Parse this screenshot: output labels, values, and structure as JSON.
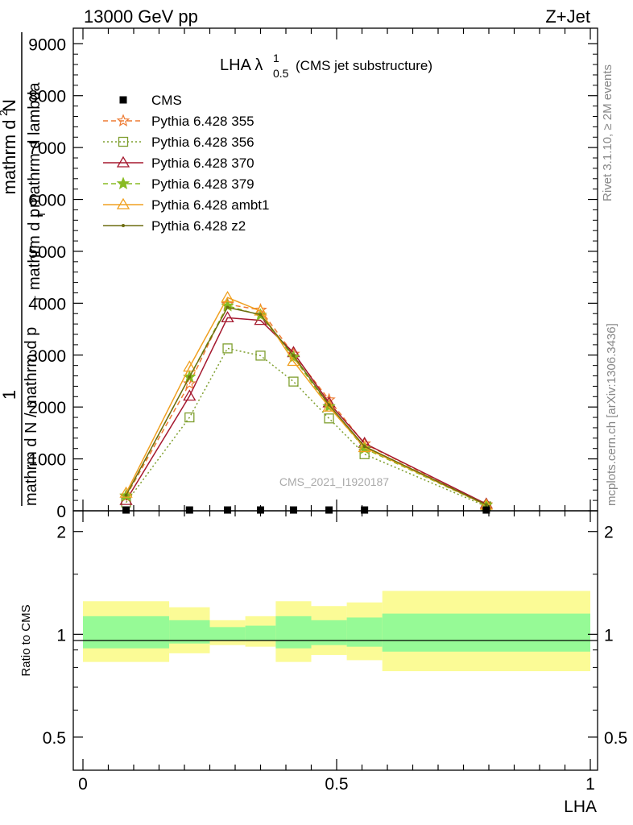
{
  "header": {
    "left": "13000 GeV pp",
    "right": "Z+Jet"
  },
  "plot_title": {
    "main": "LHA λ",
    "sup": "1",
    "sub": "0.5",
    "suffix": "(CMS jet substructure)"
  },
  "side_labels": {
    "rivet": "Rivet 3.1.10, ≥ 2M events",
    "mcplots": "mcplots.cern.ch [arXiv:1306.3436]"
  },
  "watermark": "CMS_2021_I1920187",
  "ylabel_main": {
    "numerator_one": "1",
    "numerator_two": "mathrm d",
    "numerator_two_sup": "2",
    "numerator_two_rest": "N",
    "den_a": "mathrm d N / mathrm d p",
    "den_a_sub": "T",
    "den_b": "mathrm d p",
    "den_b_sub": "T",
    "den_b_rest": "mathrm d lambda"
  },
  "ylabel_ratio": "Ratio to CMS",
  "xlabel": "LHA",
  "chart_data": [
    {
      "type": "line",
      "panel": "main",
      "xlim": [
        0,
        1
      ],
      "ylim": [
        0,
        9300
      ],
      "y_ticks": [
        0,
        1000,
        2000,
        3000,
        4000,
        5000,
        6000,
        7000,
        8000,
        9000
      ],
      "y_tick_labels": [
        "0",
        "1000",
        "2000",
        "3000",
        "4000",
        "5000",
        "6000",
        "7000",
        "8000",
        "9000"
      ],
      "x": [
        0.085,
        0.21,
        0.285,
        0.35,
        0.415,
        0.485,
        0.555,
        0.795
      ],
      "series": [
        {
          "name": "CMS",
          "color": "#000000",
          "marker": "square-filled",
          "line": "none",
          "values": [
            15,
            15,
            15,
            15,
            15,
            15,
            15,
            15
          ]
        },
        {
          "name": "Pythia 6.428 355",
          "color": "#ee7b33",
          "marker": "star-open",
          "line": "dashed",
          "values": [
            280,
            2450,
            3980,
            3870,
            3020,
            2140,
            1290,
            120
          ]
        },
        {
          "name": "Pythia 6.428 356",
          "color": "#7f9f2f",
          "marker": "square-open",
          "line": "dotted",
          "values": [
            160,
            1800,
            3130,
            2990,
            2490,
            1780,
            1090,
            85
          ]
        },
        {
          "name": "Pythia 6.428 370",
          "color": "#a5182e",
          "marker": "triangle-open",
          "line": "solid",
          "values": [
            200,
            2210,
            3720,
            3670,
            3050,
            2080,
            1300,
            130
          ]
        },
        {
          "name": "Pythia 6.428 379",
          "color": "#88bb22",
          "marker": "star-filled",
          "line": "dashed",
          "values": [
            290,
            2580,
            3950,
            3770,
            2960,
            2010,
            1200,
            105
          ]
        },
        {
          "name": "Pythia 6.428 ambt1",
          "color": "#f0a020",
          "marker": "triangle-open",
          "line": "solid",
          "values": [
            340,
            2770,
            4110,
            3850,
            2880,
            2000,
            1220,
            110
          ]
        },
        {
          "name": "Pythia 6.428 z2",
          "color": "#6d6d10",
          "marker": "dot",
          "line": "solid",
          "values": [
            300,
            2580,
            3920,
            3780,
            2990,
            2040,
            1240,
            115
          ]
        }
      ]
    },
    {
      "type": "area",
      "panel": "ratio",
      "xlim": [
        0,
        1
      ],
      "ylim": [
        0.4,
        2.3
      ],
      "log_scale_y": true,
      "y_ticks": [
        0.5,
        1,
        2
      ],
      "y_tick_labels": [
        "0.5",
        "1",
        "2"
      ],
      "x_ticks": [
        0,
        0.5,
        1
      ],
      "x_tick_labels": [
        "0",
        "0.5",
        "1"
      ],
      "bin_edges": [
        0,
        0.17,
        0.25,
        0.32,
        0.38,
        0.45,
        0.52,
        0.59,
        1.0
      ],
      "band_outer_lo": [
        0.83,
        0.88,
        0.93,
        0.92,
        0.83,
        0.87,
        0.84,
        0.78
      ],
      "band_outer_hi": [
        1.25,
        1.2,
        1.1,
        1.13,
        1.25,
        1.21,
        1.24,
        1.34
      ],
      "band_inner_lo": [
        0.91,
        0.94,
        0.96,
        0.96,
        0.91,
        0.93,
        0.92,
        0.89
      ],
      "band_inner_hi": [
        1.13,
        1.1,
        1.05,
        1.06,
        1.13,
        1.1,
        1.12,
        1.15
      ],
      "colors": {
        "outer": "#fbfb96",
        "inner": "#96fa96",
        "line": "#000000"
      }
    }
  ]
}
